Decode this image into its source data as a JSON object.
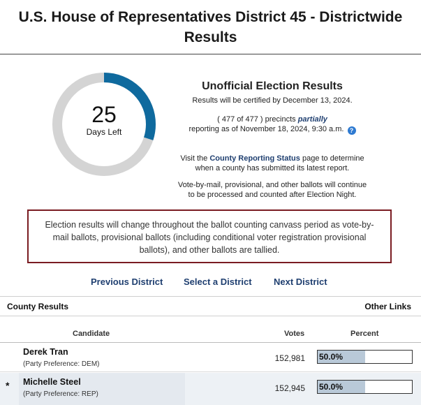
{
  "header": {
    "title": "U.S. House of Representatives District 45 - Districtwide Results"
  },
  "countdown": {
    "days": "25",
    "label": "Days Left",
    "progress_fraction": 0.3,
    "ring_color": "#0f6a9e",
    "track_color": "#d4d4d4"
  },
  "info": {
    "title": "Unofficial Election Results",
    "certified": "Results will be certified by December 13, 2024.",
    "precinct_prefix": "( 477 of 477 ) precincts ",
    "precinct_emphasis": "partially",
    "reporting": "reporting as of November 18, 2024, 9:30 a.m.",
    "help_icon": "question-circle-icon",
    "help_glyph": "?",
    "visit_prefix": "Visit the ",
    "visit_link": "County Reporting Status",
    "visit_suffix": " page to determine",
    "visit_line2": "when a county has submitted its latest report.",
    "vbm_line1": "Vote-by-mail, provisional, and other ballots will continue",
    "vbm_line2": "to be processed and counted after Election Night."
  },
  "notice": {
    "text": "Election results will change throughout the ballot counting canvass period as vote-by-mail ballots, provisional ballots (including conditional voter registration provisional ballots), and other ballots are tallied."
  },
  "nav": {
    "previous": "Previous District",
    "select": "Select a District",
    "next": "Next District"
  },
  "sections": {
    "county_results": "County Results",
    "other_links": "Other Links"
  },
  "table": {
    "headers": {
      "candidate": "Candidate",
      "votes": "Votes",
      "percent": "Percent"
    },
    "rows": [
      {
        "winner_mark": "",
        "name": "Derek Tran",
        "party": "(Party Preference: DEM)",
        "votes": "152,981",
        "percent_label": "50.0%",
        "percent_value": 50.0
      },
      {
        "winner_mark": "*",
        "name": "Michelle Steel",
        "party": "(Party Preference: REP)",
        "votes": "152,945",
        "percent_label": "50.0%",
        "percent_value": 50.0
      }
    ]
  }
}
